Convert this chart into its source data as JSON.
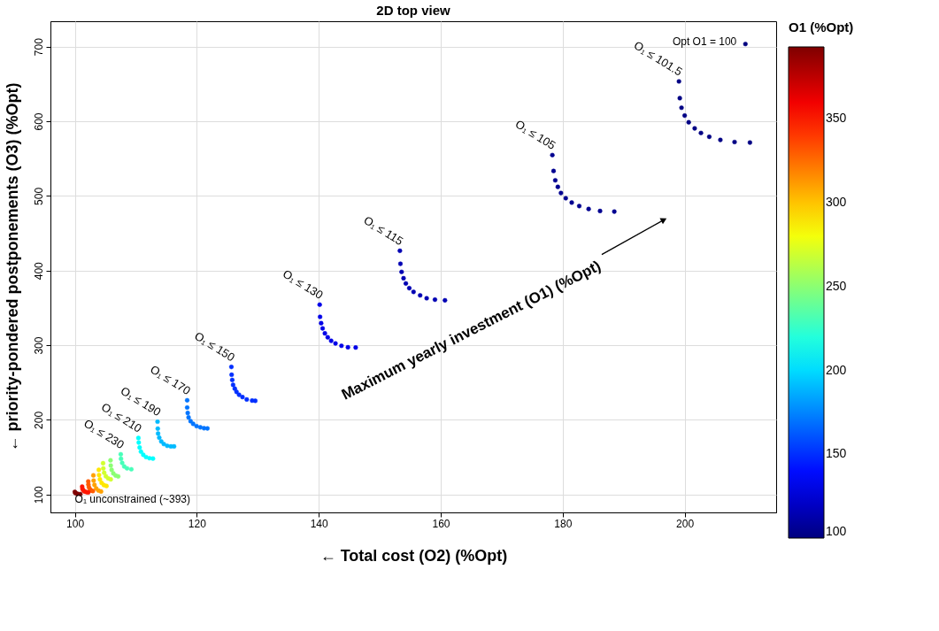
{
  "chart_data": {
    "type": "scatter",
    "title": "2D top view",
    "xlabel": "← Total cost (O2) (%Opt)",
    "ylabel": "← priority-pondered postponements (O3) (%Opt)",
    "clabel": "O1 (%Opt)",
    "xlim": [
      96,
      215
    ],
    "ylim": [
      76,
      734
    ],
    "xticks": [
      100,
      120,
      140,
      160,
      180,
      200
    ],
    "yticks": [
      100,
      200,
      300,
      400,
      500,
      600,
      700
    ],
    "clim": [
      100,
      393
    ],
    "cticks": [
      100,
      150,
      200,
      250,
      300,
      350
    ],
    "grid": true,
    "marker": "circle",
    "series": [
      {
        "color": "#00007f",
        "x": [
          209.96
        ],
        "values": [
          703.5
        ],
        "cvalues": [
          100
        ]
      },
      {
        "color": "#000084",
        "x": [
          199.06,
          199.2,
          199.48,
          200.0,
          200.66,
          201.64,
          202.67,
          204.03,
          205.85,
          208.18,
          210.7
        ],
        "values": [
          653.4,
          630.9,
          618.1,
          607.6,
          598.6,
          590.5,
          584.3,
          579.2,
          575.0,
          572.2,
          571.5
        ],
        "cvalues": [
          101.5,
          101.5,
          101.5,
          101.5,
          101.5,
          101.5,
          101.5,
          101.5,
          101.5,
          101.5,
          101.5
        ]
      },
      {
        "color": "#000091",
        "x": [
          178.3,
          178.5,
          178.78,
          179.2,
          179.71,
          180.5,
          181.48,
          182.71,
          184.25,
          186.12,
          188.46
        ],
        "values": [
          554.7,
          533.4,
          520.9,
          512.1,
          503.9,
          496.9,
          491.1,
          486.4,
          482.5,
          479.8,
          479.0
        ],
        "cvalues": [
          105,
          105,
          105,
          105,
          105,
          105,
          105,
          105,
          105,
          105,
          105
        ]
      },
      {
        "color": "#0000b3",
        "x": [
          153.3,
          153.39,
          153.58,
          153.9,
          154.28,
          154.84,
          155.54,
          156.62,
          157.69,
          159.05,
          160.69
        ],
        "values": [
          426.5,
          409.1,
          398.2,
          389.7,
          382.7,
          376.4,
          371.4,
          366.8,
          362.9,
          361.0,
          360.1
        ],
        "cvalues": [
          115,
          115,
          115,
          115,
          115,
          115,
          115,
          115,
          115,
          115,
          115
        ]
      },
      {
        "color": "#0000e8",
        "x": [
          140.15,
          140.21,
          140.39,
          140.63,
          141.0,
          141.47,
          142.03,
          142.74,
          143.72,
          144.78,
          146.05
        ],
        "values": [
          354.3,
          338.0,
          329.5,
          322.5,
          315.9,
          310.5,
          305.9,
          302.4,
          299.2,
          297.2,
          296.9
        ],
        "cvalues": [
          130,
          130,
          130,
          130,
          130,
          130,
          130,
          130,
          130,
          130,
          130
        ]
      },
      {
        "color": "#002fff",
        "x": [
          125.67,
          125.71,
          125.81,
          125.95,
          126.23,
          126.51,
          126.93,
          127.49,
          128.19,
          129.07,
          129.59
        ],
        "values": [
          270.9,
          260.4,
          253.4,
          246.8,
          241.8,
          237.5,
          233.6,
          230.5,
          227.3,
          225.8,
          225.5
        ],
        "cvalues": [
          150,
          150,
          150,
          150,
          150,
          150,
          150,
          150,
          150,
          150,
          150
        ]
      },
      {
        "color": "#0074ff",
        "x": [
          118.42,
          118.42,
          118.51,
          118.65,
          118.98,
          119.4,
          119.96,
          120.58,
          121.18,
          121.74
        ],
        "values": [
          226.2,
          216.5,
          209.2,
          203.3,
          198.2,
          194.6,
          191.6,
          190.0,
          188.8,
          188.5
        ],
        "cvalues": [
          170,
          170,
          170,
          170,
          170,
          170,
          170,
          170,
          170,
          170
        ]
      },
      {
        "color": "#00b9ff",
        "x": [
          113.56,
          113.6,
          113.65,
          113.84,
          114.17,
          114.59,
          115.15,
          115.75,
          116.27
        ],
        "values": [
          197.5,
          188.2,
          181.6,
          176.1,
          171.1,
          167.6,
          165.2,
          164.4,
          164.4
        ],
        "cvalues": [
          190,
          190,
          190,
          190,
          190,
          190,
          190,
          190,
          190
        ]
      },
      {
        "color": "#00ffff",
        "x": [
          110.42,
          110.48,
          110.62,
          110.84,
          111.22,
          111.68,
          112.24,
          112.81
        ],
        "values": [
          175.7,
          169.6,
          162.9,
          157.4,
          153.2,
          150.1,
          148.6,
          148.1
        ],
        "cvalues": [
          210,
          210,
          210,
          210,
          210,
          210,
          210,
          210
        ]
      },
      {
        "color": "#46ffb9",
        "x": [
          107.53,
          107.57,
          107.76,
          108.09,
          108.56,
          109.26
        ],
        "values": [
          153.9,
          147.8,
          142.3,
          137.6,
          135.0,
          133.8
        ],
        "cvalues": [
          230,
          230,
          230,
          230,
          230,
          230
        ]
      },
      {
        "color": "#8bff73",
        "x": [
          105.85,
          105.89,
          106.03,
          106.31,
          106.69,
          107.11
        ],
        "values": [
          145.8,
          138.8,
          133.0,
          128.3,
          125.4,
          124.2
        ],
        "cvalues": [
          250,
          250,
          250,
          250,
          250,
          250
        ]
      },
      {
        "color": "#d1ff2d",
        "x": [
          104.63,
          104.67,
          104.81,
          105.09,
          105.47,
          105.89
        ],
        "values": [
          141.9,
          134.9,
          129.1,
          124.4,
          121.5,
          120.3
        ],
        "cvalues": [
          270,
          270,
          270,
          270,
          270,
          270
        ]
      },
      {
        "color": "#ffe700",
        "x": [
          103.93,
          103.97,
          104.11,
          104.39,
          104.77,
          105.19
        ],
        "values": [
          133.0,
          126.0,
          120.2,
          115.5,
          112.6,
          111.4
        ],
        "cvalues": [
          290,
          290,
          290,
          290,
          290,
          290
        ]
      },
      {
        "color": "#ffa100",
        "x": [
          103.04,
          103.08,
          103.22,
          103.5,
          103.88,
          104.3
        ],
        "values": [
          125.6,
          118.6,
          112.8,
          108.1,
          105.2,
          104.0
        ],
        "cvalues": [
          310,
          310,
          310,
          310,
          310,
          310
        ]
      },
      {
        "color": "#ff5c00",
        "x": [
          102.2,
          102.22,
          102.31,
          102.48,
          102.7,
          102.96
        ],
        "values": [
          117.5,
          113.3,
          109.8,
          107.0,
          105.3,
          104.5
        ],
        "cvalues": [
          330,
          330,
          330,
          330,
          330,
          330
        ]
      },
      {
        "color": "#ff1600",
        "x": [
          101.2,
          101.25,
          101.4,
          101.6,
          101.9,
          102.2
        ],
        "values": [
          110.5,
          107.5,
          105.5,
          104.0,
          103.2,
          102.8
        ],
        "cvalues": [
          350,
          350,
          350,
          350,
          350,
          350
        ]
      },
      {
        "color": "#7f0000",
        "x": [
          100.0,
          100.1,
          100.4,
          100.9
        ],
        "values": [
          103.5,
          101.8,
          101.0,
          100.6
        ],
        "cvalues": [
          393,
          393,
          393,
          393
        ]
      }
    ],
    "annotations": [
      "Opt O1 = 100",
      "O₁ ≤ 101.5",
      "O₁ ≤ 105",
      "O₁ ≤ 115",
      "O₁ ≤ 130",
      "O₁ ≤ 150",
      "O₁ ≤ 170",
      "O₁ ≤ 190",
      "O₁ ≤ 210",
      "O₁ ≤ 230",
      "O₁ unconstrained (~393)",
      "Maximum yearly investment (O1) (%Opt)"
    ]
  }
}
